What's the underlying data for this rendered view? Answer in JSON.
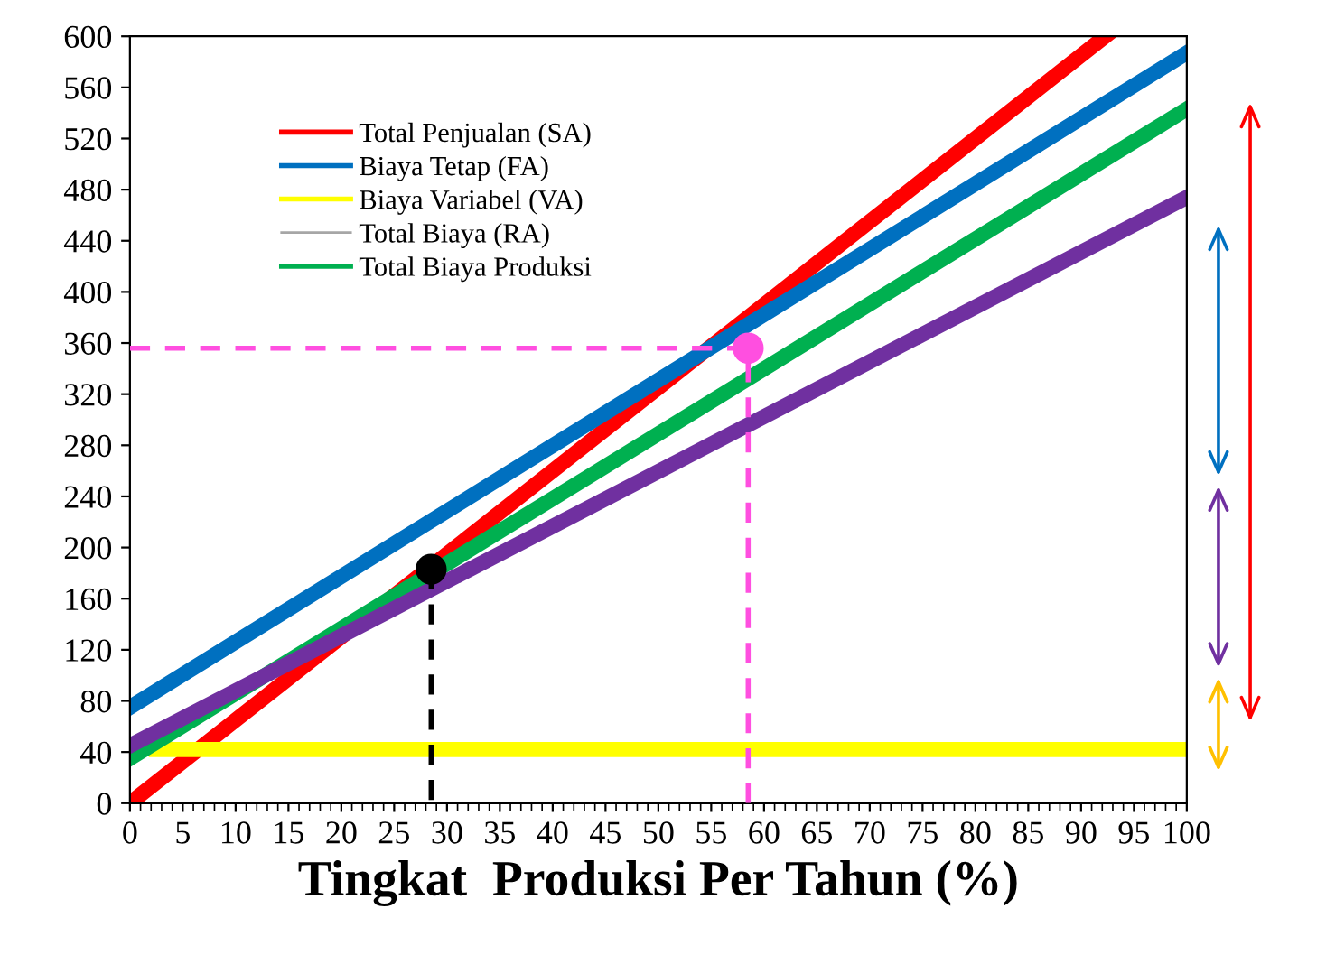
{
  "chart_data": {
    "type": "line",
    "xlabel": "Tingkat  Produksi Per Tahun (%)",
    "xlim": [
      0,
      100
    ],
    "xticks": [
      0,
      5,
      10,
      15,
      20,
      25,
      30,
      35,
      40,
      45,
      50,
      55,
      60,
      65,
      70,
      75,
      80,
      85,
      90,
      95,
      100
    ],
    "ylim": [
      0,
      600
    ],
    "yticks": [
      0,
      40,
      80,
      120,
      160,
      200,
      240,
      280,
      320,
      360,
      400,
      440,
      480,
      520,
      560,
      600
    ],
    "grid": false,
    "legend": "top left",
    "marker": "none",
    "line_style": "solid",
    "series": [
      {
        "name": "Total Penjualan (SA)",
        "color": "#ff0000",
        "x": [
          0,
          92.3
        ],
        "values": [
          0,
          600
        ]
      },
      {
        "name": "Biaya Tetap (FA)",
        "color": "#0070c0",
        "x": [
          0,
          100
        ],
        "values": [
          75,
          587
        ]
      },
      {
        "name": "Biaya Variabel (VA)",
        "color": "#ffff00",
        "x": [
          2.5,
          100
        ],
        "values": [
          42,
          42
        ]
      },
      {
        "name": "Total Biaya (RA)",
        "color": "#a6a6a6",
        "values": [
          null
        ]
      },
      {
        "name": "Total Biaya Produksi",
        "color": "#00b050",
        "x": [
          0,
          100
        ],
        "values": [
          35,
          543
        ]
      },
      {
        "color": "#7030a0",
        "x": [
          0,
          100
        ],
        "values": [
          45,
          474
        ]
      },
      {
        "color": "#000000",
        "x": [
          28.5,
          28.5
        ],
        "values": [
          183,
          0
        ],
        "line_style": "dashed"
      },
      {
        "color": "#ff4fe0",
        "x": [
          0,
          58.5,
          58.5
        ],
        "values": [
          356,
          356,
          0
        ],
        "line_style": "dashed"
      },
      {
        "type": "scatter",
        "color": "#000000",
        "x": [
          28.5
        ],
        "values": [
          183
        ],
        "marker": "circle"
      },
      {
        "type": "scatter",
        "color": "#ff4fe0",
        "x": [
          58.5
        ],
        "values": [
          356
        ],
        "marker": "circle"
      }
    ]
  }
}
